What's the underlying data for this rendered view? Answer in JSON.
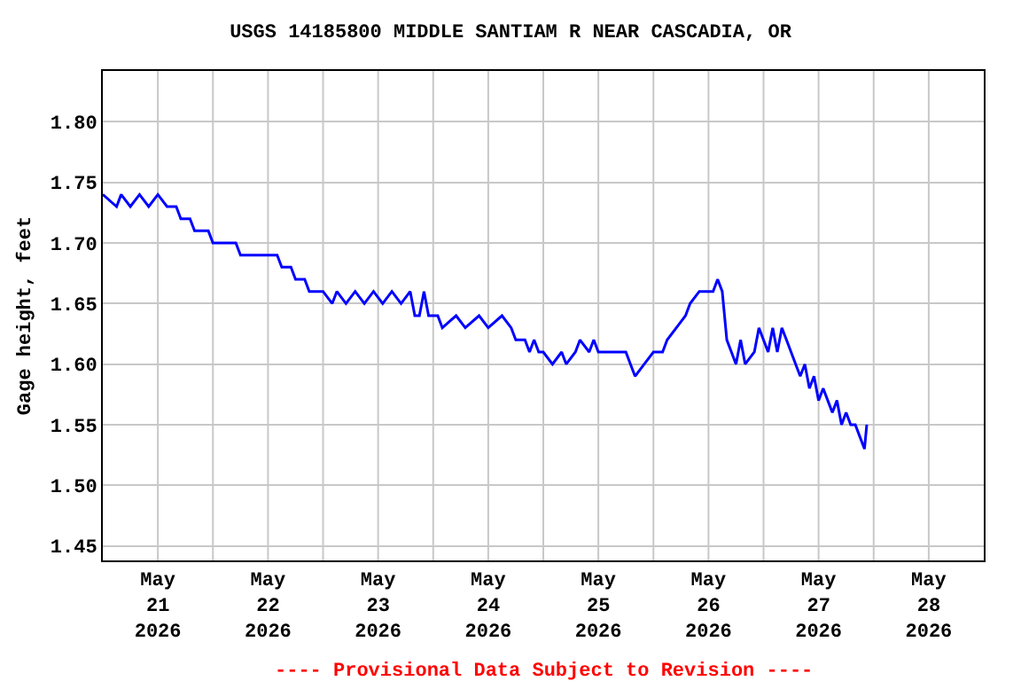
{
  "chart_data": {
    "type": "line",
    "title": "USGS 14185800 MIDDLE SANTIAM R NEAR CASCADIA, OR",
    "ylabel": "Gage height, feet",
    "x": [
      "2026-05-21T00:00",
      "2026-05-21T03:00",
      "2026-05-21T04:00",
      "2026-05-21T06:00",
      "2026-05-21T08:00",
      "2026-05-21T10:00",
      "2026-05-21T12:00",
      "2026-05-21T14:00",
      "2026-05-21T16:00",
      "2026-05-21T17:00",
      "2026-05-21T19:00",
      "2026-05-21T20:00",
      "2026-05-21T23:00",
      "2026-05-22T00:00",
      "2026-05-22T05:00",
      "2026-05-22T06:00",
      "2026-05-22T14:00",
      "2026-05-22T15:00",
      "2026-05-22T17:00",
      "2026-05-22T18:00",
      "2026-05-22T20:00",
      "2026-05-22T21:00",
      "2026-05-23T00:00",
      "2026-05-23T02:00",
      "2026-05-23T03:00",
      "2026-05-23T05:00",
      "2026-05-23T07:00",
      "2026-05-23T09:00",
      "2026-05-23T11:00",
      "2026-05-23T13:00",
      "2026-05-23T15:00",
      "2026-05-23T17:00",
      "2026-05-23T19:00",
      "2026-05-23T20:00",
      "2026-05-23T21:00",
      "2026-05-23T22:00",
      "2026-05-23T23:00",
      "2026-05-24T01:00",
      "2026-05-24T02:00",
      "2026-05-24T05:00",
      "2026-05-24T07:00",
      "2026-05-24T10:00",
      "2026-05-24T12:00",
      "2026-05-24T15:00",
      "2026-05-24T17:00",
      "2026-05-24T18:00",
      "2026-05-24T20:00",
      "2026-05-24T21:00",
      "2026-05-24T22:00",
      "2026-05-24T23:00",
      "2026-05-25T00:00",
      "2026-05-25T02:00",
      "2026-05-25T04:00",
      "2026-05-25T05:00",
      "2026-05-25T07:00",
      "2026-05-25T08:00",
      "2026-05-25T10:00",
      "2026-05-25T11:00",
      "2026-05-25T12:00",
      "2026-05-25T18:00",
      "2026-05-25T19:00",
      "2026-05-25T20:00",
      "2026-05-25T22:00",
      "2026-05-26T00:00",
      "2026-05-26T02:00",
      "2026-05-26T03:00",
      "2026-05-26T05:00",
      "2026-05-26T07:00",
      "2026-05-26T08:00",
      "2026-05-26T10:00",
      "2026-05-26T13:00",
      "2026-05-26T14:00",
      "2026-05-26T15:00",
      "2026-05-26T16:00",
      "2026-05-26T17:00",
      "2026-05-26T18:00",
      "2026-05-26T19:00",
      "2026-05-26T20:00",
      "2026-05-26T22:00",
      "2026-05-26T23:00",
      "2026-05-27T01:00",
      "2026-05-27T02:00",
      "2026-05-27T03:00",
      "2026-05-27T04:00",
      "2026-05-27T05:00",
      "2026-05-27T06:00",
      "2026-05-27T07:00",
      "2026-05-27T08:00",
      "2026-05-27T09:00",
      "2026-05-27T10:00",
      "2026-05-27T11:00",
      "2026-05-27T12:00",
      "2026-05-27T13:00",
      "2026-05-27T14:00",
      "2026-05-27T15:00",
      "2026-05-27T16:00",
      "2026-05-27T17:00",
      "2026-05-27T18:00",
      "2026-05-27T19:00",
      "2026-05-27T20:00",
      "2026-05-27T21:00",
      "2026-05-27T22:00",
      "2026-05-27T22:30"
    ],
    "series": [
      {
        "color": "#0000ff",
        "values": [
          1.74,
          1.73,
          1.74,
          1.73,
          1.74,
          1.73,
          1.74,
          1.73,
          1.73,
          1.72,
          1.72,
          1.71,
          1.71,
          1.7,
          1.7,
          1.69,
          1.69,
          1.68,
          1.68,
          1.67,
          1.67,
          1.66,
          1.66,
          1.65,
          1.66,
          1.65,
          1.66,
          1.65,
          1.66,
          1.65,
          1.66,
          1.65,
          1.66,
          1.64,
          1.64,
          1.66,
          1.64,
          1.64,
          1.63,
          1.64,
          1.63,
          1.64,
          1.63,
          1.64,
          1.63,
          1.62,
          1.62,
          1.61,
          1.62,
          1.61,
          1.61,
          1.6,
          1.61,
          1.6,
          1.61,
          1.62,
          1.61,
          1.62,
          1.61,
          1.61,
          1.6,
          1.59,
          1.6,
          1.61,
          1.61,
          1.62,
          1.63,
          1.64,
          1.65,
          1.66,
          1.66,
          1.67,
          1.66,
          1.62,
          1.61,
          1.6,
          1.62,
          1.6,
          1.61,
          1.63,
          1.61,
          1.63,
          1.61,
          1.63,
          1.62,
          1.61,
          1.6,
          1.59,
          1.6,
          1.58,
          1.59,
          1.57,
          1.58,
          1.57,
          1.56,
          1.57,
          1.55,
          1.56,
          1.55,
          1.55,
          1.54,
          1.53,
          1.55
        ]
      }
    ],
    "xlim": [
      "2026-05-21T00:00",
      "2026-05-29T00:00"
    ],
    "xticks": [
      {
        "value": "2026-05-21T12:00",
        "label": "May\n21\n2026"
      },
      {
        "value": "2026-05-22T12:00",
        "label": "May\n22\n2026"
      },
      {
        "value": "2026-05-23T12:00",
        "label": "May\n23\n2026"
      },
      {
        "value": "2026-05-24T12:00",
        "label": "May\n24\n2026"
      },
      {
        "value": "2026-05-25T12:00",
        "label": "May\n25\n2026"
      },
      {
        "value": "2026-05-26T12:00",
        "label": "May\n26\n2026"
      },
      {
        "value": "2026-05-27T12:00",
        "label": "May\n27\n2026"
      },
      {
        "value": "2026-05-28T12:00",
        "label": "May\n28\n2026"
      },
      {
        "value": "2026-05-22T00:00",
        "label": null
      },
      {
        "value": "2026-05-23T00:00",
        "label": null
      },
      {
        "value": "2026-05-24T00:00",
        "label": null
      },
      {
        "value": "2026-05-25T00:00",
        "label": null
      },
      {
        "value": "2026-05-26T00:00",
        "label": null
      },
      {
        "value": "2026-05-27T00:00",
        "label": null
      },
      {
        "value": "2026-05-28T00:00",
        "label": null
      }
    ],
    "ylim": [
      1.438,
      1.842
    ],
    "yticks": [
      1.45,
      {
        "value": 1.5,
        "label": "1.50"
      },
      1.55,
      {
        "value": 1.6,
        "label": "1.60"
      },
      1.65,
      {
        "value": 1.7,
        "label": "1.70"
      },
      1.75,
      {
        "value": 1.8,
        "label": "1.80"
      }
    ],
    "grid": true,
    "marker": "none",
    "line_style": "solid",
    "annotations": [
      "---- Provisional Data Subject to Revision ----"
    ]
  }
}
